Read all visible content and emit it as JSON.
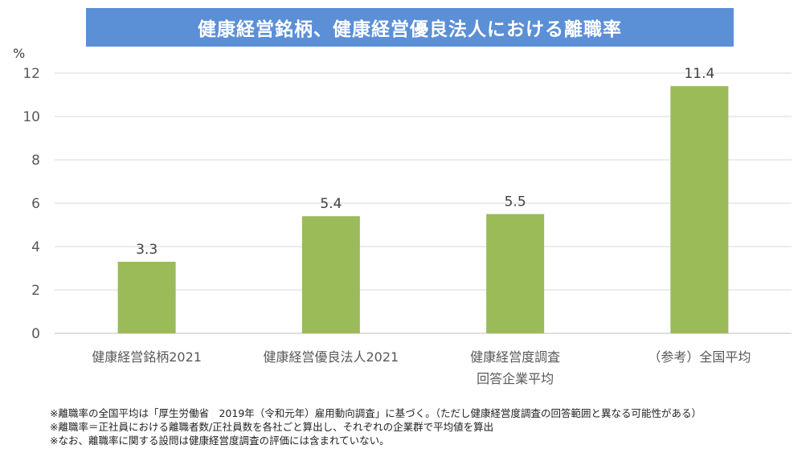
{
  "chart_data": {
    "type": "bar",
    "title": "健康経営銘柄、健康経営優良法人における離職率",
    "ylabel": "%",
    "ylim": [
      0,
      12
    ],
    "yticks": [
      0,
      2,
      4,
      6,
      8,
      10,
      12
    ],
    "grid": true,
    "categories": [
      [
        "健康経営銘柄2021"
      ],
      [
        "健康経営優良法人2021"
      ],
      [
        "健康経営度調査",
        "回答企業平均"
      ],
      [
        "（参考）全国平均"
      ]
    ],
    "values": [
      3.3,
      5.4,
      5.5,
      11.4
    ],
    "value_labels": [
      "3.3",
      "5.4",
      "5.5",
      "11.4"
    ],
    "bar_color": "#9bbb59"
  },
  "notes": [
    "※離職率の全国平均は「厚生労働省　2019年（令和元年）雇用動向調査」に基づく。（ただし健康経営度調査の回答範囲と異なる可能性がある）",
    "※離職率＝正社員における離職者数/正社員数を各社ごと算出し、それぞれの企業群で平均値を算出",
    "※なお、離職率に関する設問は健康経営度調査の評価には含まれていない。"
  ]
}
